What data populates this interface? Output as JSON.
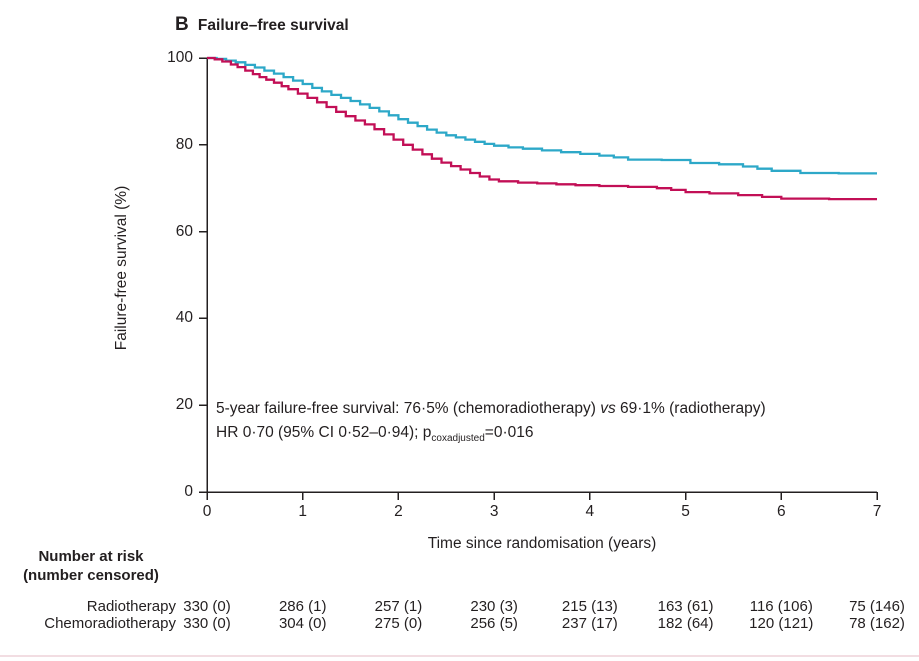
{
  "title": {
    "panel_label": "B",
    "text": "Failure–free survival"
  },
  "annotation": {
    "line1_main": "5-year failure-free survival: 76·5% (chemoradiotherapy) ",
    "line1_vs": "vs",
    "line1_rest": " 69·1% (radiotherapy)",
    "line2_pre": "HR 0·70 (95% CI 0·52–0·94); p",
    "line2_sub": "coxadjusted",
    "line2_post": "=0·016"
  },
  "chart_data": {
    "type": "line",
    "subtype": "kaplan-meier-step",
    "title": "Failure–free survival",
    "xlabel": "Time since randomisation (years)",
    "ylabel": "Failure-free survival (%)",
    "xlim": [
      0,
      7
    ],
    "ylim": [
      0,
      100
    ],
    "x_ticks": [
      0,
      1,
      2,
      3,
      4,
      5,
      6,
      7
    ],
    "y_ticks": [
      0,
      20,
      40,
      60,
      80,
      100
    ],
    "grid": false,
    "legend_position": "none",
    "series": [
      {
        "name": "Chemoradiotherapy",
        "color": "#2da8c8",
        "points": [
          [
            0,
            100
          ],
          [
            0.1,
            99.8
          ],
          [
            0.2,
            99.4
          ],
          [
            0.3,
            99.0
          ],
          [
            0.4,
            98.4
          ],
          [
            0.5,
            97.8
          ],
          [
            0.6,
            97.1
          ],
          [
            0.7,
            96.4
          ],
          [
            0.8,
            95.6
          ],
          [
            0.9,
            94.8
          ],
          [
            1.0,
            94.0
          ],
          [
            1.1,
            93.1
          ],
          [
            1.2,
            92.3
          ],
          [
            1.3,
            91.5
          ],
          [
            1.4,
            90.8
          ],
          [
            1.5,
            90.1
          ],
          [
            1.6,
            89.3
          ],
          [
            1.7,
            88.5
          ],
          [
            1.8,
            87.7
          ],
          [
            1.9,
            86.8
          ],
          [
            2.0,
            85.9
          ],
          [
            2.1,
            85.1
          ],
          [
            2.2,
            84.3
          ],
          [
            2.3,
            83.5
          ],
          [
            2.4,
            82.8
          ],
          [
            2.5,
            82.2
          ],
          [
            2.6,
            81.7
          ],
          [
            2.7,
            81.2
          ],
          [
            2.8,
            80.7
          ],
          [
            2.9,
            80.2
          ],
          [
            3.0,
            79.8
          ],
          [
            3.15,
            79.4
          ],
          [
            3.3,
            79.1
          ],
          [
            3.5,
            78.7
          ],
          [
            3.7,
            78.3
          ],
          [
            3.9,
            77.9
          ],
          [
            4.1,
            77.5
          ],
          [
            4.25,
            77.1
          ],
          [
            4.4,
            76.6
          ],
          [
            4.75,
            76.5
          ],
          [
            5.05,
            75.8
          ],
          [
            5.35,
            75.5
          ],
          [
            5.6,
            75.0
          ],
          [
            5.75,
            74.5
          ],
          [
            5.9,
            74.0
          ],
          [
            6.2,
            73.5
          ],
          [
            6.6,
            73.4
          ],
          [
            7,
            73.4
          ]
        ]
      },
      {
        "name": "Radiotherapy",
        "color": "#c20f56",
        "points": [
          [
            0,
            100
          ],
          [
            0.08,
            99.7
          ],
          [
            0.16,
            99.2
          ],
          [
            0.25,
            98.5
          ],
          [
            0.32,
            97.9
          ],
          [
            0.4,
            97.1
          ],
          [
            0.48,
            96.3
          ],
          [
            0.55,
            95.6
          ],
          [
            0.62,
            95.0
          ],
          [
            0.7,
            94.3
          ],
          [
            0.78,
            93.5
          ],
          [
            0.85,
            92.8
          ],
          [
            0.95,
            91.8
          ],
          [
            1.05,
            90.8
          ],
          [
            1.15,
            89.8
          ],
          [
            1.25,
            88.7
          ],
          [
            1.35,
            87.6
          ],
          [
            1.45,
            86.6
          ],
          [
            1.55,
            85.6
          ],
          [
            1.65,
            84.7
          ],
          [
            1.75,
            83.6
          ],
          [
            1.85,
            82.4
          ],
          [
            1.95,
            81.2
          ],
          [
            2.05,
            80.0
          ],
          [
            2.15,
            78.9
          ],
          [
            2.25,
            77.8
          ],
          [
            2.35,
            76.8
          ],
          [
            2.45,
            75.9
          ],
          [
            2.55,
            75.1
          ],
          [
            2.65,
            74.3
          ],
          [
            2.75,
            73.5
          ],
          [
            2.85,
            72.7
          ],
          [
            2.95,
            72.0
          ],
          [
            3.05,
            71.6
          ],
          [
            3.25,
            71.3
          ],
          [
            3.45,
            71.1
          ],
          [
            3.65,
            70.9
          ],
          [
            3.85,
            70.7
          ],
          [
            4.1,
            70.5
          ],
          [
            4.4,
            70.3
          ],
          [
            4.7,
            70.0
          ],
          [
            4.85,
            69.6
          ],
          [
            5.0,
            69.1
          ],
          [
            5.25,
            68.8
          ],
          [
            5.55,
            68.4
          ],
          [
            5.8,
            68.0
          ],
          [
            6.0,
            67.6
          ],
          [
            6.5,
            67.5
          ],
          [
            7,
            67.5
          ]
        ]
      }
    ],
    "key_stats": {
      "five_year_chemoradiotherapy_pct": "76·5%",
      "five_year_radiotherapy_pct": "69·1%",
      "hazard_ratio": "0·70",
      "ci_95": "0·52–0·94",
      "p_coxadjusted": "0·016"
    }
  },
  "risk_table": {
    "header_line1": "Number at risk",
    "header_line2": "(number censored)",
    "rows": [
      {
        "label": "Radiotherapy",
        "values": [
          "330 (0)",
          "286 (1)",
          "257 (1)",
          "230 (3)",
          "215 (13)",
          "163 (61)",
          "116 (106)",
          "75 (146)"
        ]
      },
      {
        "label": "Chemoradiotherapy",
        "values": [
          "330 (0)",
          "304 (0)",
          "275 (0)",
          "256 (5)",
          "237 (17)",
          "182 (64)",
          "120 (121)",
          "78 (162)"
        ]
      }
    ]
  },
  "colors": {
    "text": "#231f20",
    "axis": "#231f20",
    "chemoradiotherapy": "#2da8c8",
    "radiotherapy": "#c20f56",
    "bottom_rule": "#f2dde2"
  }
}
